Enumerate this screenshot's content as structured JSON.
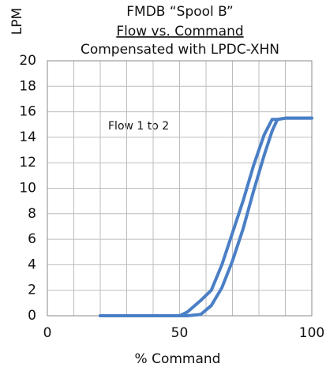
{
  "chart_data": {
    "type": "line",
    "title": [
      "FMDB “Spool B”",
      "Flow vs. Command",
      "Compensated with LPDC-XHN"
    ],
    "ylabel": "LPM",
    "xlabel": "% Command",
    "annotation": "Flow 1 to 2",
    "x": [
      20,
      50,
      53,
      58,
      62,
      66,
      70,
      74,
      78,
      82,
      85,
      87,
      90,
      100
    ],
    "series": [
      {
        "color": "#4a7fc6",
        "values": [
          0,
          0,
          0.3,
          1.2,
          2,
          4,
          6.5,
          9,
          11.8,
          14.2,
          15.4,
          15.4,
          15.5,
          15.5
        ]
      },
      {
        "color": "#4a7fc6",
        "values": [
          0,
          0,
          0,
          0.1,
          0.8,
          2.2,
          4.3,
          6.8,
          9.8,
          12.6,
          14.5,
          15.4,
          15.5,
          15.5
        ]
      }
    ],
    "xlim": [
      0,
      100
    ],
    "xticks": [
      0,
      50,
      100
    ],
    "xgrid": [
      0,
      10,
      20,
      30,
      40,
      50,
      60,
      70,
      80,
      90,
      100
    ],
    "ylim": [
      0,
      20
    ],
    "yticks": [
      0,
      2,
      4,
      6,
      8,
      10,
      12,
      14,
      16,
      18,
      20
    ],
    "grid": true
  }
}
